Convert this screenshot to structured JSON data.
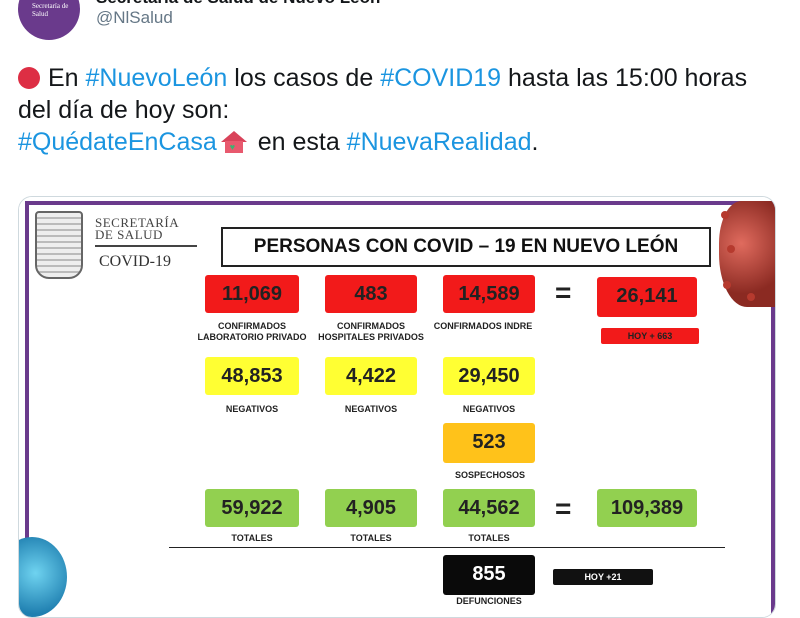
{
  "account": {
    "name": "Secretaría de Salud de Nuevo León",
    "handle": "@NlSalud",
    "avatar_text": "Secretaría de Salud"
  },
  "tweet": {
    "emoji_dot": "red-circle-icon",
    "text_1": "En ",
    "hashtag_1": "#NuevoLeón",
    "text_2": " los casos de ",
    "hashtag_2": "#COVID19",
    "text_3": " hasta las 15:00 horas del día de hoy son:",
    "hashtag_3": "#QuédateEnCasa",
    "emoji_house": "house-with-heart-icon",
    "text_4": " en esta ",
    "hashtag_4": "#NuevaRealidad",
    "text_5": ".",
    "hashtag_color": "#1b95e0"
  },
  "infographic": {
    "org_line1": "SECRETARÍA",
    "org_line2": "DE SALUD",
    "covid_label": "COVID-19",
    "headline": "PERSONAS CON COVID – 19 EN NUEVO LEÓN",
    "confirmed": [
      {
        "value": "11,069",
        "caption": "CONFIRMADOS LABORATORIO  PRIVADO"
      },
      {
        "value": "483",
        "caption": "CONFIRMADOS HOSPITALES  PRIVADOS"
      },
      {
        "value": "14,589",
        "caption": "CONFIRMADOS INDRE"
      }
    ],
    "confirmed_total": "26,141",
    "confirmed_today": "HOY + 663",
    "negatives": [
      {
        "value": "48,853",
        "caption": "NEGATIVOS"
      },
      {
        "value": "4,422",
        "caption": "NEGATIVOS"
      },
      {
        "value": "29,450",
        "caption": "NEGATIVOS"
      }
    ],
    "suspects": {
      "value": "523",
      "caption": "SOSPECHOSOS"
    },
    "totals": [
      {
        "value": "59,922",
        "caption": "TOTALES"
      },
      {
        "value": "4,905",
        "caption": "TOTALES"
      },
      {
        "value": "44,562",
        "caption": "TOTALES"
      }
    ],
    "grand_total": "109,389",
    "deaths": {
      "value": "855",
      "caption": "DEFUNCIONES",
      "today": "HOY +21"
    },
    "equals": "=",
    "colors": {
      "red": "#f21a1a",
      "yellow": "#ffff33",
      "orange": "#ffc21a",
      "green": "#92d050",
      "black": "#0a0a0a",
      "frame": "#6a3a8c"
    }
  }
}
